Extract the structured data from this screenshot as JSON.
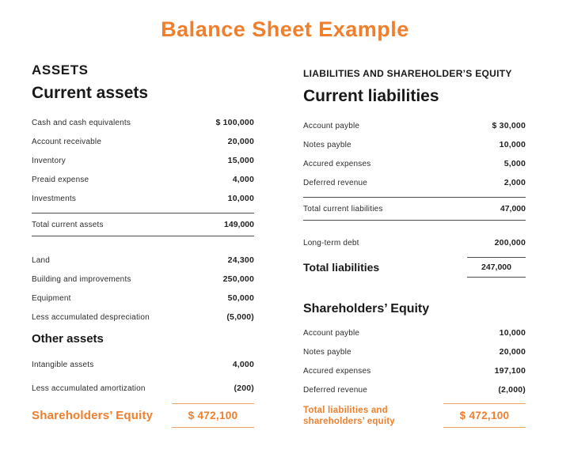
{
  "title": "Balance Sheet Example",
  "colors": {
    "accent": "#F07F2D",
    "accent_rule": "#F0A261",
    "text": "#1E1E1E",
    "rule": "#4D4D4D"
  },
  "assets": {
    "heading": "ASSETS",
    "subheading": "Current assets",
    "current_rows": [
      {
        "label": "Cash and cash equivalents",
        "value": "$ 100,000"
      },
      {
        "label": "Account receivable",
        "value": "20,000"
      },
      {
        "label": "Inventory",
        "value": "15,000"
      },
      {
        "label": "Preaid expense",
        "value": "4,000"
      },
      {
        "label": "Investments",
        "value": "10,000"
      }
    ],
    "total_current": {
      "label": "Total current assets",
      "value": "149,000"
    },
    "fixed_rows": [
      {
        "label": "Land",
        "value": "24,300"
      },
      {
        "label": "Building and improvements",
        "value": "250,000"
      },
      {
        "label": "Equipment",
        "value": "50,000"
      },
      {
        "label": "Less accumulated despreciation",
        "value": "(5,000)"
      }
    ],
    "other_heading": "Other assets",
    "other_rows": [
      {
        "label": "Intangible assets",
        "value": "4,000"
      },
      {
        "label": "Less accumulated amortization",
        "value": "(200)"
      }
    ],
    "grand_total": {
      "label": "Shareholders’ Equity",
      "value": "$ 472,100"
    }
  },
  "liabilities": {
    "heading": "LIABILITIES AND SHAREHOLDER’S EQUITY",
    "subheading": "Current liabilities",
    "current_rows": [
      {
        "label": "Account payble",
        "value": "$ 30,000"
      },
      {
        "label": "Notes payble",
        "value": "10,000"
      },
      {
        "label": "Accured expenses",
        "value": "5,000"
      },
      {
        "label": "Deferred revenue",
        "value": "2,000"
      }
    ],
    "total_current": {
      "label": "Total current liabilities",
      "value": "47,000"
    },
    "long_term": {
      "label": "Long-term debt",
      "value": "200,000"
    },
    "total_liabilities": {
      "label": "Total liabilities",
      "value": "247,000"
    },
    "equity_heading": "Shareholders’ Equity",
    "equity_rows": [
      {
        "label": "Account payble",
        "value": "10,000"
      },
      {
        "label": "Notes payble",
        "value": "20,000"
      },
      {
        "label": "Accured expenses",
        "value": "197,100"
      },
      {
        "label": "Deferred revenue",
        "value": "(2,000)"
      }
    ],
    "grand_total": {
      "label": "Total liabilities and shareholders’ equity",
      "value": "$ 472,100"
    }
  }
}
